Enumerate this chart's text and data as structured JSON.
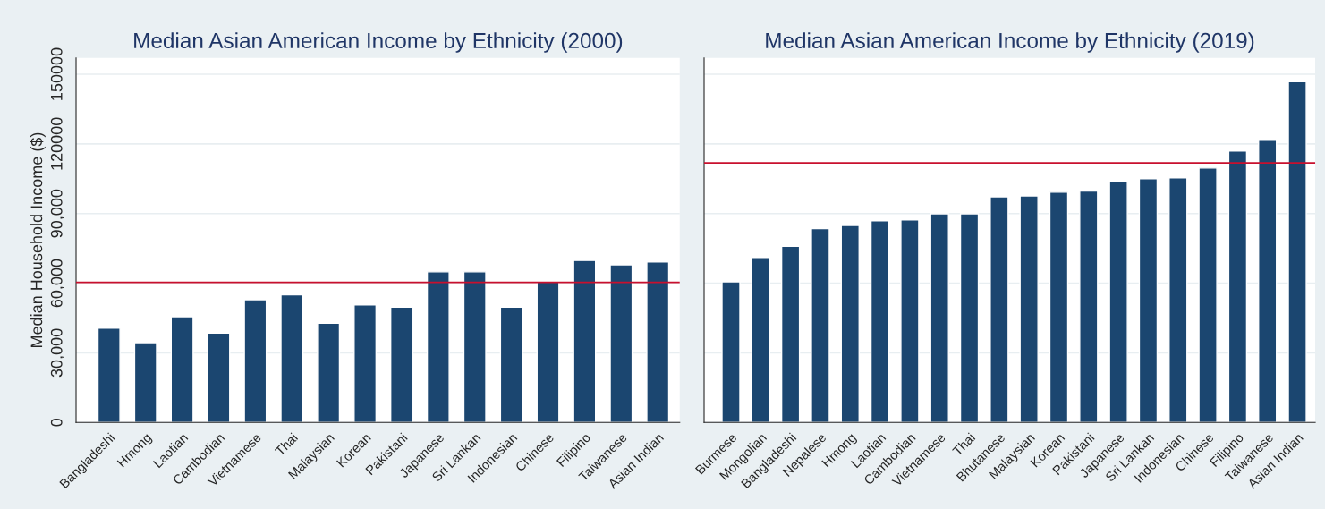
{
  "chart_data": [
    {
      "type": "bar",
      "title": "Median Asian American Income by Ethnicity (2000)",
      "ylabel": "Median Household Income ($)",
      "categories": [
        "Bangladeshi",
        "Hmong",
        "Laotian",
        "Cambodian",
        "Vietnamese",
        "Thai",
        "Malaysian",
        "Korean",
        "Pakistani",
        "Japanese",
        "Sri Lankan",
        "Indonesian",
        "Chinese",
        "Filipino",
        "Taiwanese",
        "Asian Indian"
      ],
      "values": [
        40600,
        34400,
        45600,
        38500,
        52900,
        55000,
        42800,
        50700,
        49700,
        64900,
        64900,
        49700,
        60800,
        69800,
        67900,
        69200
      ],
      "color": "#1b4670",
      "ylim": [
        0,
        157000
      ],
      "yticks": [
        0,
        {
          "value": 30000,
          "label": "30,000"
        },
        {
          "value": 60000,
          "label": "60,000"
        },
        {
          "value": 90000,
          "label": "90,000"
        },
        120000,
        150000
      ],
      "ref_lines": [
        {
          "axis": "y",
          "value": 60400,
          "color": "#c8102e"
        }
      ],
      "grid": "y"
    },
    {
      "type": "bar",
      "title": "Median Asian American Income by Ethnicity (2019)",
      "categories": [
        "Burmese",
        "Mongolian",
        "Bangladeshi",
        "Nepalese",
        "Hmong",
        "Laotian",
        "Cambodian",
        "Vietnamese",
        "Thai",
        "Bhutanese",
        "Malaysian",
        "Korean",
        "Pakistani",
        "Japanese",
        "Sri Lankan",
        "Indonesian",
        "Chinese",
        "Filipino",
        "Taiwanese",
        "Asian Indian"
      ],
      "values": [
        60600,
        71100,
        75900,
        83500,
        84900,
        86900,
        87300,
        89900,
        89900,
        97200,
        97600,
        99200,
        99700,
        103800,
        105000,
        105400,
        109600,
        116900,
        121600,
        146800
      ],
      "color": "#1b4670",
      "ylim": [
        0,
        157000
      ],
      "yticks": [
        {
          "value": 0,
          "label": null
        },
        {
          "value": 30000,
          "label": null
        },
        {
          "value": 60000,
          "label": null
        },
        {
          "value": 90000,
          "label": null
        },
        {
          "value": 120000,
          "label": null
        },
        {
          "value": 150000,
          "label": null
        }
      ],
      "tick_labels": "x",
      "ref_lines": [
        {
          "axis": "y",
          "value": 111800,
          "color": "#c8102e"
        }
      ],
      "grid": "y"
    }
  ]
}
